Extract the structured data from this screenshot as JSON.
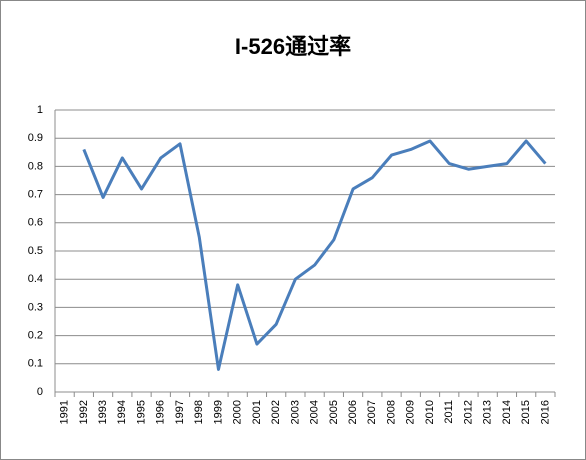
{
  "chart_data": {
    "type": "line",
    "title": "I-526通过率",
    "categories": [
      "1991",
      "1992",
      "1993",
      "1994",
      "1995",
      "1996",
      "1997",
      "1998",
      "1999",
      "2000",
      "2001",
      "2002",
      "2003",
      "2004",
      "2005",
      "2006",
      "2007",
      "2008",
      "2009",
      "2010",
      "2011",
      "2012",
      "2013",
      "2014",
      "2015",
      "2016"
    ],
    "values": [
      null,
      0.86,
      0.69,
      0.83,
      0.72,
      0.83,
      0.88,
      0.55,
      0.08,
      0.38,
      0.17,
      0.24,
      0.4,
      0.45,
      0.54,
      0.72,
      0.76,
      0.84,
      0.86,
      0.89,
      0.81,
      0.79,
      0.8,
      0.81,
      0.89,
      0.81
    ],
    "color": "#4a7ebb",
    "ylim": [
      0,
      1
    ],
    "yticks": [
      0,
      0.1,
      0.2,
      0.3,
      0.4,
      0.5,
      0.6,
      0.7,
      0.8,
      0.9,
      1
    ],
    "grid": true
  }
}
